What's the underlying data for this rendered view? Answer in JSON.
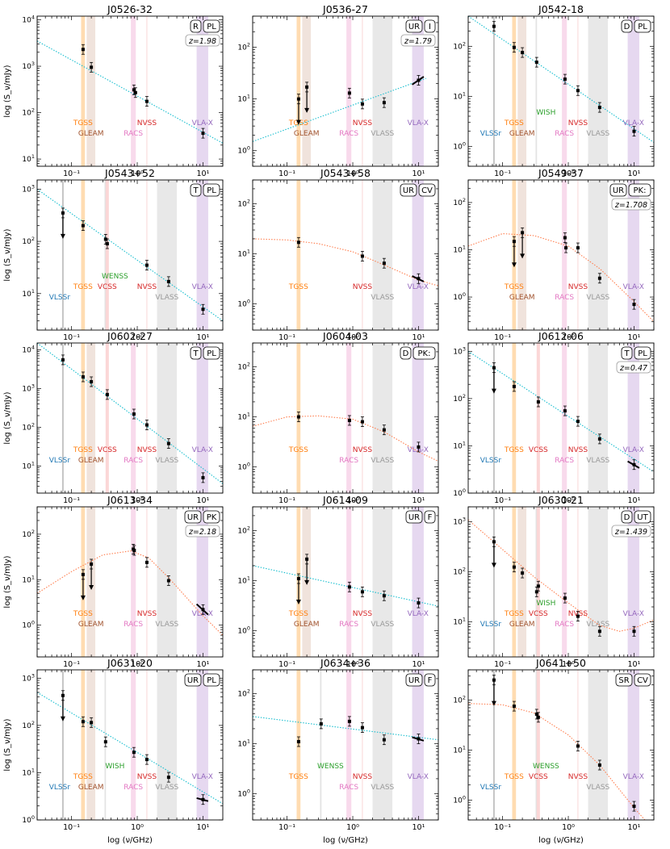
{
  "figure": {
    "ylabel": "log (S_ν/mJy)",
    "xlabel": "log (ν/GHz)",
    "x_range_GHz": [
      0.03,
      20
    ],
    "x_tick_labels": [
      "10⁻¹",
      "10⁰",
      "10¹"
    ]
  },
  "survey_bands": [
    {
      "name": "VLSSr",
      "freq_GHz": [
        0.072,
        0.076
      ],
      "color": "#bdbdbd",
      "label_color": "#1f77b4"
    },
    {
      "name": "TGSS",
      "freq_GHz": [
        0.14,
        0.16
      ],
      "color": "#ffd8a8",
      "label_color": "#ff7f0e"
    },
    {
      "name": "GLEAM",
      "freq_GHz": [
        0.17,
        0.23
      ],
      "color": "#eee0d8",
      "label_color": "#a0522d"
    },
    {
      "name": "WISH",
      "freq_GHz": [
        0.318,
        0.334
      ],
      "color": "#e0e0e0",
      "label_color": "#2ca02c"
    },
    {
      "name": "WENSS",
      "freq_GHz": [
        0.318,
        0.334
      ],
      "color": "#e0e0e0",
      "label_color": "#2ca02c"
    },
    {
      "name": "VCSS",
      "freq_GHz": [
        0.33,
        0.37
      ],
      "color": "#fbd3d3",
      "label_color": "#d62728"
    },
    {
      "name": "RACS",
      "freq_GHz": [
        0.8,
        0.95
      ],
      "color": "#f7d6ea",
      "label_color": "#e377c2"
    },
    {
      "name": "NVSS",
      "freq_GHz": [
        1.38,
        1.42
      ],
      "color": "#fbd3d3",
      "label_color": "#d62728"
    },
    {
      "name": "VLASS",
      "freq_GHz": [
        2.0,
        4.0
      ],
      "color": "#e6e6e6",
      "label_color": "#999999"
    },
    {
      "name": "VLA-X",
      "freq_GHz": [
        8.0,
        12.0
      ],
      "color": "#e3d4ee",
      "label_color": "#9467bd"
    }
  ],
  "chart_data": [
    {
      "type": "scatter",
      "title": "J0526-32",
      "ylim": [
        7,
        12000
      ],
      "tags": [
        "R",
        "PL"
      ],
      "z": "z=1.98",
      "bands": [
        "TGSS",
        "GLEAM",
        "RACS",
        "NVSS",
        "VLA-X"
      ],
      "points": [
        {
          "x": 0.15,
          "y": 2300
        },
        {
          "x": 0.2,
          "y": 950
        },
        {
          "x": 0.89,
          "y": 310
        },
        {
          "x": 0.94,
          "y": 270
        },
        {
          "x": 1.4,
          "y": 175
        },
        {
          "x": 10,
          "y": 36
        }
      ],
      "fit": {
        "kind": "powerlaw",
        "color": "#17becf",
        "pts": [
          [
            0.03,
            3500
          ],
          [
            20,
            22
          ]
        ]
      }
    },
    {
      "type": "scatter",
      "title": "J0536-27",
      "ylim": [
        0.5,
        400
      ],
      "tags": [
        "UR",
        "I"
      ],
      "z": "z=1.79",
      "bands": [
        "TGSS",
        "GLEAM",
        "RACS",
        "NVSS",
        "VLASS",
        "VLA-X"
      ],
      "points": [
        {
          "x": 0.15,
          "y": 10,
          "limit": true
        },
        {
          "x": 0.2,
          "y": 17,
          "limit": true
        },
        {
          "x": 0.89,
          "y": 13
        },
        {
          "x": 1.4,
          "y": 8
        },
        {
          "x": 3,
          "y": 8.5
        },
        {
          "x": 10,
          "y": 23
        }
      ],
      "fit": {
        "kind": "powerlaw",
        "color": "#17becf",
        "pts": [
          [
            0.03,
            1.5
          ],
          [
            13,
            25
          ]
        ]
      },
      "inband": [
        [
          8,
          19
        ],
        [
          12,
          27
        ]
      ]
    },
    {
      "type": "scatter",
      "title": "J0542-18",
      "ylim": [
        0.4,
        400
      ],
      "tags": [
        "D",
        "PL"
      ],
      "z": "",
      "bands": [
        "VLSSr",
        "TGSS",
        "GLEAM",
        "WISH",
        "RACS",
        "NVSS",
        "VLASS",
        "VLA-X"
      ],
      "points": [
        {
          "x": 0.074,
          "y": 250
        },
        {
          "x": 0.15,
          "y": 95
        },
        {
          "x": 0.2,
          "y": 75
        },
        {
          "x": 0.33,
          "y": 48
        },
        {
          "x": 0.89,
          "y": 22
        },
        {
          "x": 1.4,
          "y": 13
        },
        {
          "x": 3,
          "y": 6
        },
        {
          "x": 10,
          "y": 2
        }
      ],
      "fit": {
        "kind": "powerlaw",
        "color": "#17becf",
        "pts": [
          [
            0.03,
            400
          ],
          [
            20,
            1.2
          ]
        ]
      }
    },
    {
      "type": "scatter",
      "title": "J0543+52",
      "ylim": [
        2,
        1500
      ],
      "tags": [
        "T",
        "PL"
      ],
      "z": "",
      "bands": [
        "VLSSr",
        "TGSS",
        "WENSS",
        "VCSS",
        "NVSS",
        "VLASS",
        "VLA-X"
      ],
      "points": [
        {
          "x": 0.074,
          "y": 350,
          "limit": true
        },
        {
          "x": 0.15,
          "y": 200
        },
        {
          "x": 0.33,
          "y": 110
        },
        {
          "x": 0.35,
          "y": 90
        },
        {
          "x": 1.4,
          "y": 35
        },
        {
          "x": 3,
          "y": 17
        },
        {
          "x": 10,
          "y": 5
        }
      ],
      "fit": {
        "kind": "powerlaw",
        "color": "#17becf",
        "pts": [
          [
            0.03,
            1000
          ],
          [
            20,
            3
          ]
        ]
      }
    },
    {
      "type": "scatter",
      "title": "J0543+58",
      "ylim": [
        0.3,
        300
      ],
      "tags": [
        "UR",
        "CV"
      ],
      "z": "",
      "bands": [
        "TGSS",
        "NVSS",
        "VLASS",
        "VLA-X"
      ],
      "points": [
        {
          "x": 0.15,
          "y": 17
        },
        {
          "x": 1.4,
          "y": 9
        },
        {
          "x": 3,
          "y": 6.5
        },
        {
          "x": 10,
          "y": 3.2
        }
      ],
      "fit": {
        "kind": "curve",
        "color": "#ff7f50",
        "pts": [
          [
            0.03,
            20
          ],
          [
            0.1,
            19
          ],
          [
            0.3,
            16
          ],
          [
            1,
            11
          ],
          [
            3,
            6
          ],
          [
            10,
            3
          ],
          [
            20,
            2.3
          ]
        ]
      },
      "inband": [
        [
          8,
          3.6
        ],
        [
          12,
          2.8
        ]
      ]
    },
    {
      "type": "scatter",
      "title": "J0549-37",
      "ylim": [
        0.2,
        300
      ],
      "tags": [
        "UR",
        "PK:"
      ],
      "z": "z=1.708",
      "bands": [
        "TGSS",
        "GLEAM",
        "RACS",
        "NVSS",
        "VLASS",
        "VLA-X"
      ],
      "points": [
        {
          "x": 0.15,
          "y": 15,
          "limit": true
        },
        {
          "x": 0.2,
          "y": 23,
          "limit": true
        },
        {
          "x": 0.89,
          "y": 18
        },
        {
          "x": 0.92,
          "y": 11
        },
        {
          "x": 1.4,
          "y": 11
        },
        {
          "x": 3,
          "y": 2.5
        },
        {
          "x": 10,
          "y": 0.7
        }
      ],
      "fit": {
        "kind": "curve",
        "color": "#ff7f50",
        "pts": [
          [
            0.03,
            12
          ],
          [
            0.1,
            22
          ],
          [
            0.3,
            20
          ],
          [
            1,
            12
          ],
          [
            3,
            4
          ],
          [
            10,
            0.8
          ],
          [
            20,
            0.3
          ]
        ]
      }
    },
    {
      "type": "scatter",
      "title": "J0602-27",
      "ylim": [
        2,
        15000
      ],
      "tags": [
        "T",
        "PL"
      ],
      "z": "",
      "bands": [
        "VLSSr",
        "TGSS",
        "GLEAM",
        "VCSS",
        "RACS",
        "NVSS",
        "VLASS",
        "VLA-X"
      ],
      "points": [
        {
          "x": 0.074,
          "y": 5500
        },
        {
          "x": 0.15,
          "y": 2000
        },
        {
          "x": 0.2,
          "y": 1500
        },
        {
          "x": 0.35,
          "y": 700
        },
        {
          "x": 0.89,
          "y": 220
        },
        {
          "x": 1.4,
          "y": 115
        },
        {
          "x": 3,
          "y": 38
        },
        {
          "x": 10,
          "y": 5
        }
      ],
      "fit": {
        "kind": "powerlaw",
        "color": "#17becf",
        "pts": [
          [
            0.03,
            15000
          ],
          [
            20,
            3.5
          ]
        ]
      }
    },
    {
      "type": "scatter",
      "title": "J0604-03",
      "ylim": [
        0.3,
        300
      ],
      "tags": [
        "D",
        "PK:"
      ],
      "z": "",
      "bands": [
        "TGSS",
        "RACS",
        "NVSS",
        "VLASS",
        "VLA-X"
      ],
      "points": [
        {
          "x": 0.15,
          "y": 10
        },
        {
          "x": 0.89,
          "y": 8.5
        },
        {
          "x": 1.4,
          "y": 8
        },
        {
          "x": 3,
          "y": 5.5
        },
        {
          "x": 10,
          "y": 2.5
        }
      ],
      "fit": {
        "kind": "curve",
        "color": "#ff7f50",
        "pts": [
          [
            0.03,
            6.5
          ],
          [
            0.1,
            10
          ],
          [
            0.3,
            10.5
          ],
          [
            1,
            9
          ],
          [
            3,
            5
          ],
          [
            10,
            2
          ],
          [
            20,
            1.3
          ]
        ]
      }
    },
    {
      "type": "scatter",
      "title": "J0612-06",
      "ylim": [
        1,
        1500
      ],
      "tags": [
        "T",
        "PL"
      ],
      "z": "z=0.47",
      "bands": [
        "VLSSr",
        "TGSS",
        "VCSS",
        "RACS",
        "NVSS",
        "VLASS",
        "VLA-X"
      ],
      "points": [
        {
          "x": 0.074,
          "y": 450,
          "limit": true
        },
        {
          "x": 0.15,
          "y": 180
        },
        {
          "x": 0.35,
          "y": 85
        },
        {
          "x": 0.89,
          "y": 55
        },
        {
          "x": 1.4,
          "y": 33
        },
        {
          "x": 3,
          "y": 14
        },
        {
          "x": 10,
          "y": 4
        }
      ],
      "fit": {
        "kind": "powerlaw",
        "color": "#17becf",
        "pts": [
          [
            0.03,
            1000
          ],
          [
            20,
            2.8
          ]
        ]
      },
      "inband": [
        [
          8,
          4.7
        ],
        [
          12,
          3.4
        ]
      ]
    },
    {
      "type": "scatter",
      "title": "J0613-34",
      "ylim": [
        0.2,
        400
      ],
      "tags": [
        "UR",
        "PK"
      ],
      "z": "z=2.18",
      "bands": [
        "TGSS",
        "GLEAM",
        "RACS",
        "NVSS",
        "VLASS",
        "VLA-X"
      ],
      "points": [
        {
          "x": 0.15,
          "y": 13,
          "limit": true
        },
        {
          "x": 0.2,
          "y": 22,
          "limit": true
        },
        {
          "x": 0.87,
          "y": 47
        },
        {
          "x": 0.9,
          "y": 44
        },
        {
          "x": 1.4,
          "y": 24
        },
        {
          "x": 3,
          "y": 9.5
        },
        {
          "x": 10,
          "y": 2.2
        }
      ],
      "fit": {
        "kind": "curve",
        "color": "#ff7f50",
        "pts": [
          [
            0.03,
            5
          ],
          [
            0.1,
            15
          ],
          [
            0.3,
            35
          ],
          [
            0.8,
            43
          ],
          [
            1.5,
            30
          ],
          [
            3,
            11
          ],
          [
            10,
            1.6
          ],
          [
            20,
            0.6
          ]
        ]
      },
      "inband": [
        [
          8,
          2.9
        ],
        [
          12,
          1.7
        ]
      ]
    },
    {
      "type": "scatter",
      "title": "J0614-09",
      "ylim": [
        0.3,
        300
      ],
      "tags": [
        "UR",
        "F"
      ],
      "z": "",
      "bands": [
        "TGSS",
        "GLEAM",
        "RACS",
        "NVSS",
        "VLASS",
        "VLA-X"
      ],
      "points": [
        {
          "x": 0.15,
          "y": 11,
          "limit": true
        },
        {
          "x": 0.2,
          "y": 27,
          "limit": true
        },
        {
          "x": 0.89,
          "y": 7.5
        },
        {
          "x": 1.4,
          "y": 6
        },
        {
          "x": 3,
          "y": 5
        },
        {
          "x": 10,
          "y": 3.6
        }
      ],
      "fit": {
        "kind": "powerlaw",
        "color": "#17becf",
        "pts": [
          [
            0.03,
            20
          ],
          [
            20,
            3.1
          ]
        ]
      }
    },
    {
      "type": "scatter",
      "title": "J0630-21",
      "ylim": [
        2,
        2000
      ],
      "tags": [
        "D",
        "UT"
      ],
      "z": "z=1.439",
      "bands": [
        "VLSSr",
        "TGSS",
        "GLEAM",
        "WISH",
        "VCSS",
        "RACS",
        "NVSS",
        "VLASS",
        "VLA-X"
      ],
      "points": [
        {
          "x": 0.074,
          "y": 400,
          "limit": true
        },
        {
          "x": 0.15,
          "y": 125
        },
        {
          "x": 0.2,
          "y": 95
        },
        {
          "x": 0.33,
          "y": 40
        },
        {
          "x": 0.35,
          "y": 52
        },
        {
          "x": 0.89,
          "y": 30
        },
        {
          "x": 1.4,
          "y": 13
        },
        {
          "x": 3,
          "y": 6.5
        },
        {
          "x": 10,
          "y": 6.5
        }
      ],
      "fit": {
        "kind": "curve",
        "color": "#ff7f50",
        "pts": [
          [
            0.03,
            1100
          ],
          [
            0.1,
            280
          ],
          [
            0.3,
            80
          ],
          [
            1,
            24
          ],
          [
            3,
            8.5
          ],
          [
            6,
            6.5
          ],
          [
            10,
            7.5
          ],
          [
            20,
            11
          ]
        ]
      }
    },
    {
      "type": "scatter",
      "title": "J0631-20",
      "ylim": [
        1,
        1500
      ],
      "tags": [
        "UR",
        "PL"
      ],
      "z": "",
      "bands": [
        "VLSSr",
        "TGSS",
        "GLEAM",
        "WISH",
        "RACS",
        "NVSS",
        "VLASS",
        "VLA-X"
      ],
      "points": [
        {
          "x": 0.074,
          "y": 430,
          "limit": true
        },
        {
          "x": 0.15,
          "y": 120
        },
        {
          "x": 0.2,
          "y": 115
        },
        {
          "x": 0.33,
          "y": 45
        },
        {
          "x": 0.89,
          "y": 27
        },
        {
          "x": 1.4,
          "y": 19
        },
        {
          "x": 3,
          "y": 8
        },
        {
          "x": 10,
          "y": 2.7
        }
      ],
      "fit": {
        "kind": "powerlaw",
        "color": "#17becf",
        "pts": [
          [
            0.03,
            500
          ],
          [
            20,
            2.2
          ]
        ]
      },
      "inband": [
        [
          8,
          2.9
        ],
        [
          12,
          2.5
        ]
      ]
    },
    {
      "type": "scatter",
      "title": "J0634+36",
      "ylim": [
        0.3,
        300
      ],
      "tags": [
        "UR",
        "F"
      ],
      "z": "",
      "bands": [
        "TGSS",
        "WENSS",
        "RACS",
        "NVSS",
        "VLASS",
        "VLA-X"
      ],
      "points": [
        {
          "x": 0.15,
          "y": 11
        },
        {
          "x": 0.33,
          "y": 25
        },
        {
          "x": 0.89,
          "y": 28
        },
        {
          "x": 1.4,
          "y": 21
        },
        {
          "x": 3,
          "y": 12
        },
        {
          "x": 10,
          "y": 12.5
        }
      ],
      "fit": {
        "kind": "powerlaw",
        "color": "#17becf",
        "pts": [
          [
            0.03,
            35
          ],
          [
            20,
            12
          ]
        ]
      },
      "inband": [
        [
          8,
          13.5
        ],
        [
          12,
          11.5
        ]
      ]
    },
    {
      "type": "scatter",
      "title": "J0641+50",
      "ylim": [
        0.4,
        400
      ],
      "tags": [
        "SR",
        "CV"
      ],
      "z": "",
      "bands": [
        "VLSSr",
        "TGSS",
        "WENSS",
        "VCSS",
        "NVSS",
        "VLASS",
        "VLA-X"
      ],
      "points": [
        {
          "x": 0.074,
          "y": 250,
          "limit": true
        },
        {
          "x": 0.15,
          "y": 75
        },
        {
          "x": 0.33,
          "y": 52
        },
        {
          "x": 0.35,
          "y": 45
        },
        {
          "x": 1.4,
          "y": 12
        },
        {
          "x": 3,
          "y": 5
        },
        {
          "x": 10,
          "y": 0.75
        }
      ],
      "fit": {
        "kind": "curve",
        "color": "#ff7f50",
        "pts": [
          [
            0.03,
            85
          ],
          [
            0.1,
            80
          ],
          [
            0.3,
            55
          ],
          [
            1,
            20
          ],
          [
            3,
            5
          ],
          [
            10,
            0.7
          ],
          [
            20,
            0.25
          ]
        ]
      }
    }
  ]
}
